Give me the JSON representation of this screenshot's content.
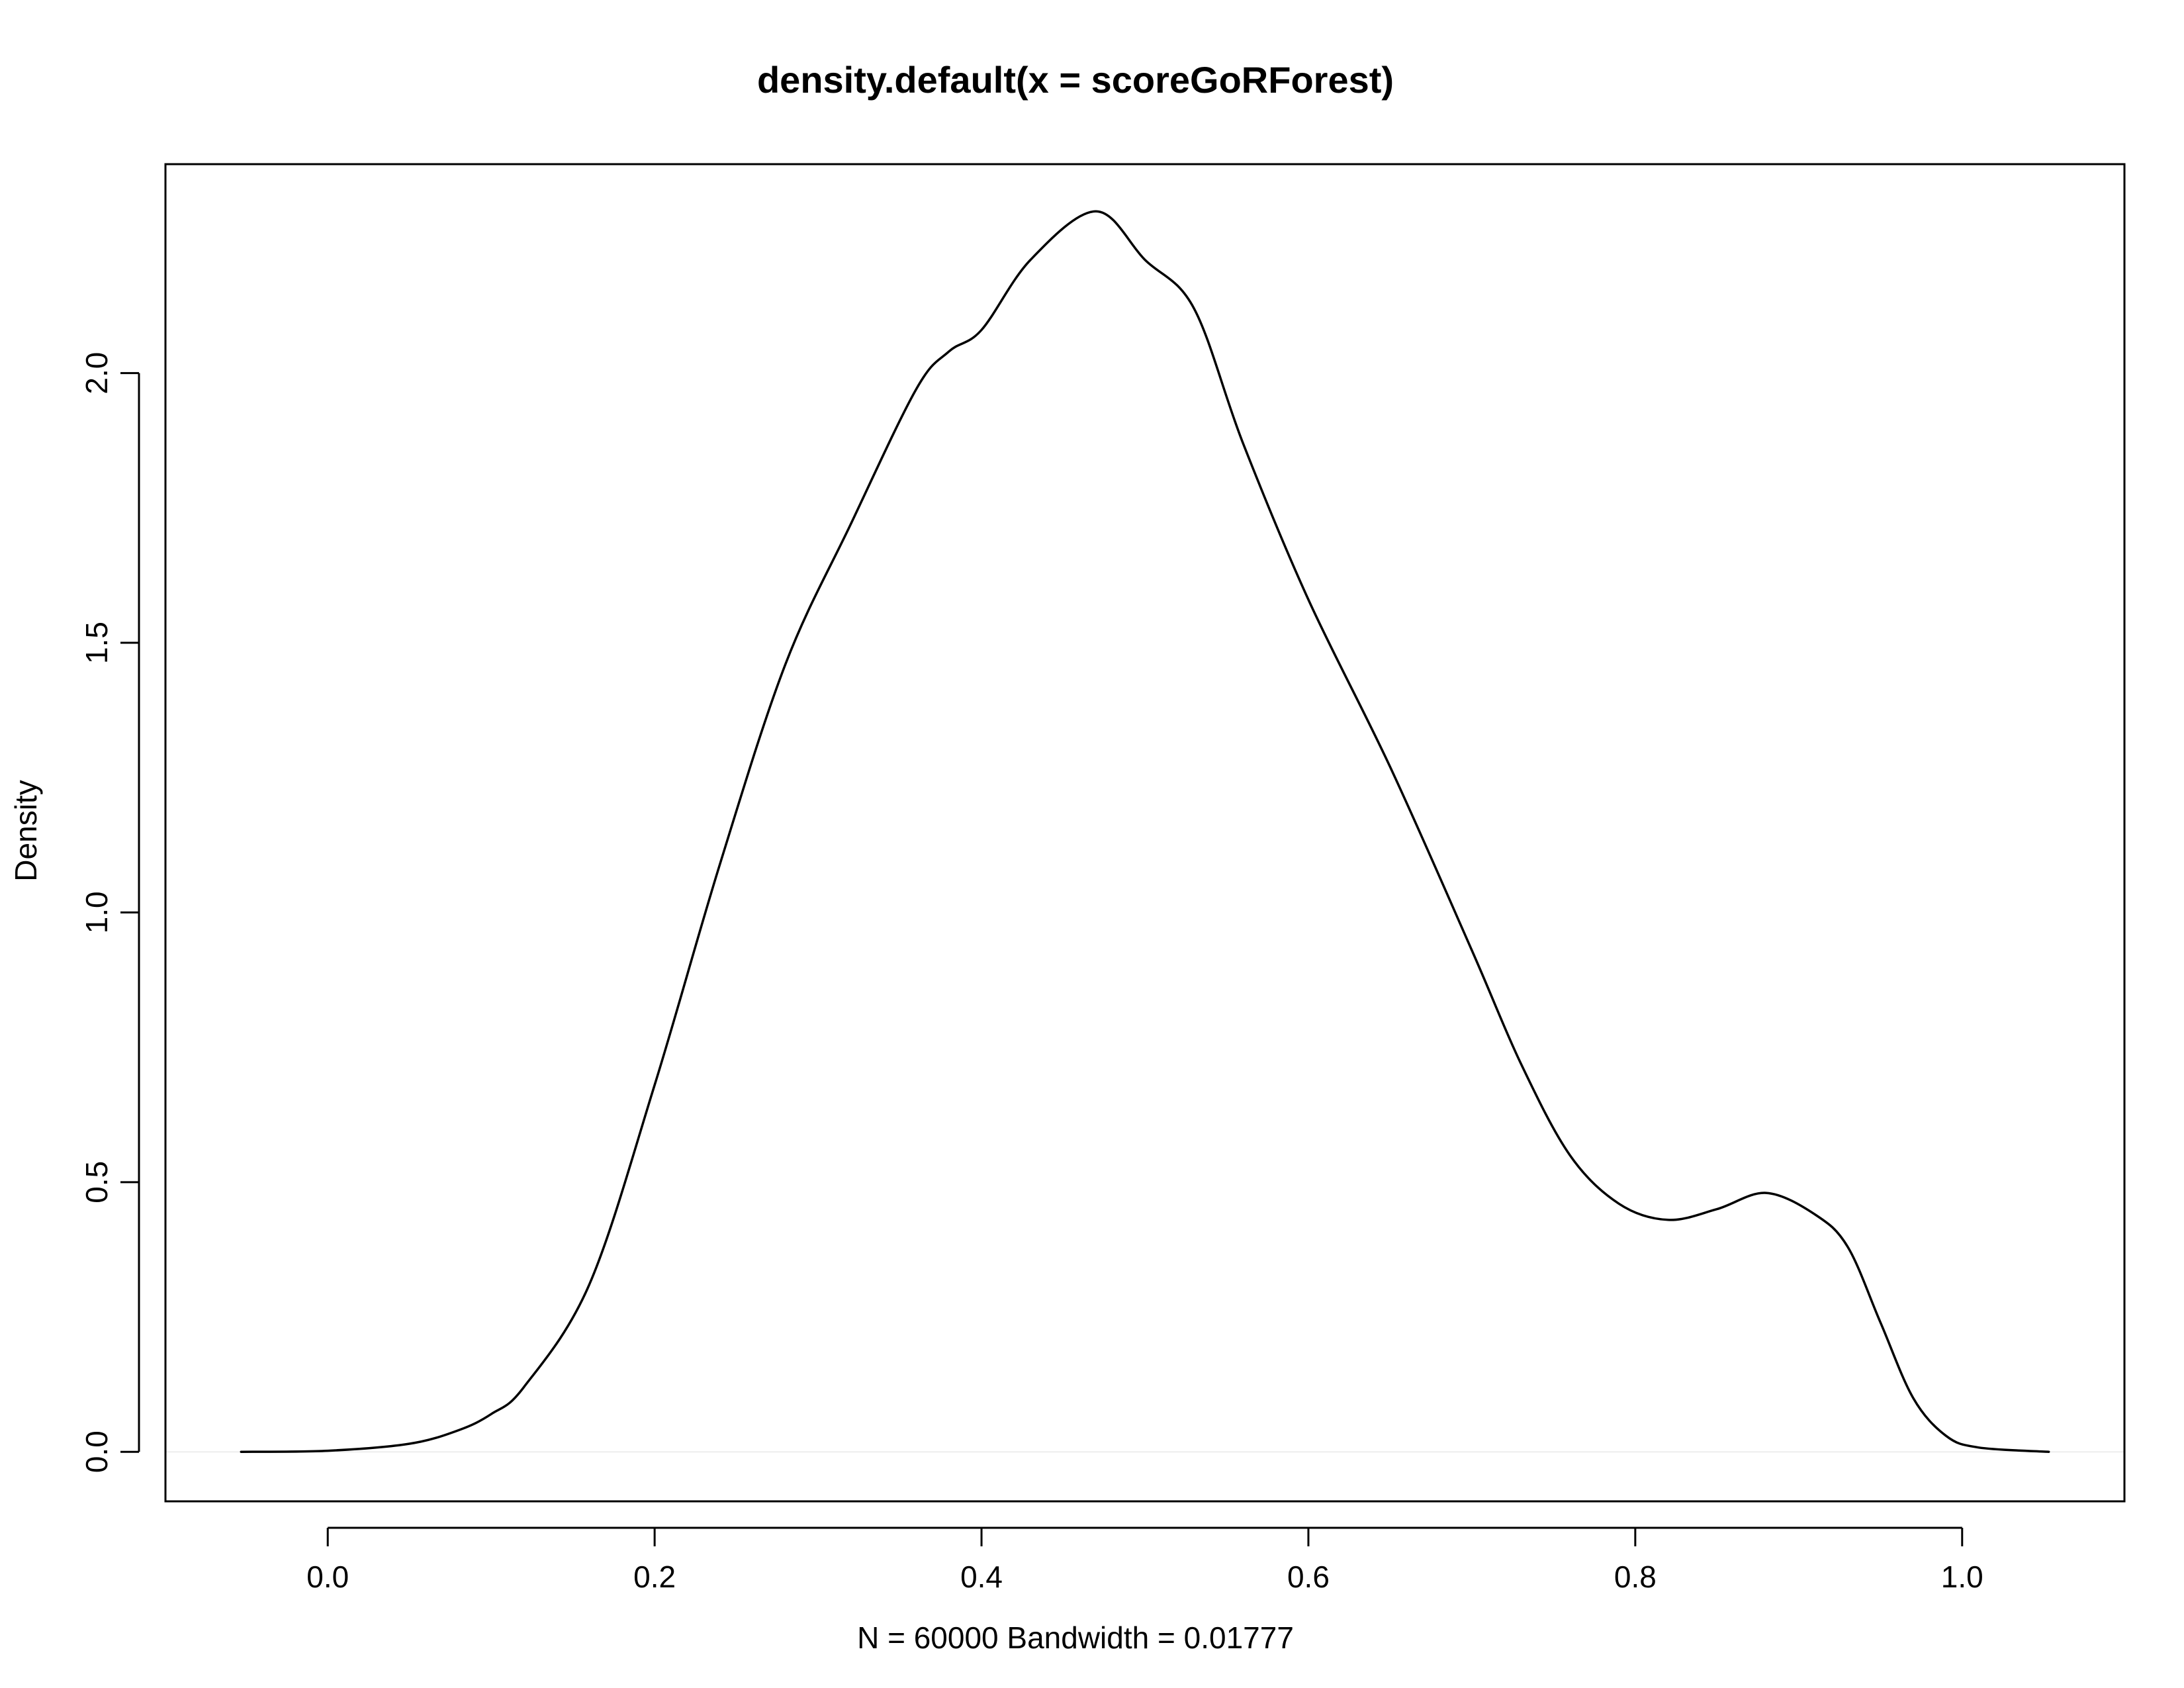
{
  "chart_data": {
    "type": "line",
    "title": "density.default(x = scoreGoRForest)",
    "xlabel": "N = 60000   Bandwidth = 0.01777",
    "ylabel": "Density",
    "xlim": [
      -0.0993,
      1.0993
    ],
    "ylim": [
      -0.0918,
      2.3874
    ],
    "x_ticks": [
      "0.0",
      "0.2",
      "0.4",
      "0.6",
      "0.8",
      "1.0"
    ],
    "y_ticks": [
      "0.0",
      "0.5",
      "1.0",
      "1.5",
      "2.0"
    ],
    "grid": false,
    "series": [
      {
        "color": "#000000",
        "x": [
          -0.053,
          0.0,
          0.05,
          0.08,
          0.1,
          0.12,
          0.16,
          0.2,
          0.24,
          0.28,
          0.32,
          0.36,
          0.38,
          0.4,
          0.43,
          0.47,
          0.5,
          0.53,
          0.56,
          0.6,
          0.65,
          0.7,
          0.73,
          0.76,
          0.79,
          0.82,
          0.85,
          0.88,
          0.91,
          0.93,
          0.95,
          0.97,
          0.99,
          1.01,
          1.053
        ],
        "y": [
          0.0,
          0.002,
          0.015,
          0.04,
          0.07,
          0.12,
          0.31,
          0.68,
          1.09,
          1.46,
          1.72,
          1.97,
          2.04,
          2.08,
          2.21,
          2.3,
          2.21,
          2.12,
          1.87,
          1.58,
          1.27,
          0.93,
          0.72,
          0.55,
          0.46,
          0.43,
          0.45,
          0.48,
          0.44,
          0.38,
          0.24,
          0.1,
          0.03,
          0.008,
          0.0
        ]
      }
    ],
    "baseline": 0
  }
}
